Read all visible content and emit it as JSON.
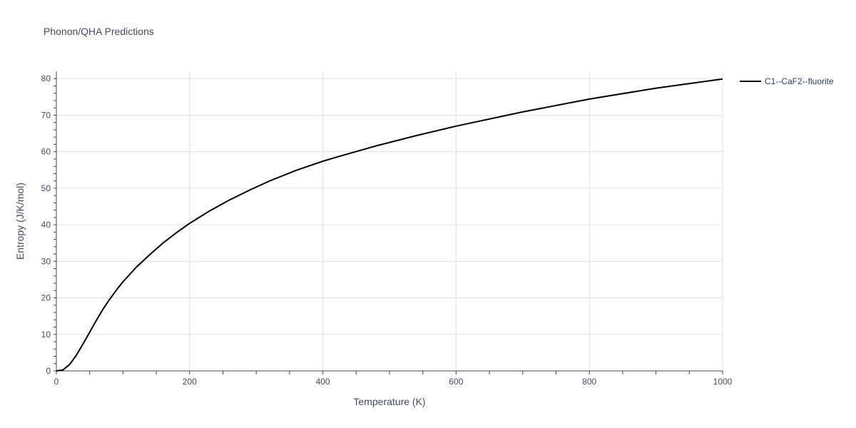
{
  "chart_data": {
    "type": "line",
    "title": "Phonon/QHA Predictions",
    "xlabel": "Temperature (K)",
    "ylabel": "Entropy (J/K/mol)",
    "xlim": [
      0,
      1000
    ],
    "ylim": [
      0,
      82
    ],
    "x_ticks": [
      0,
      200,
      400,
      600,
      800,
      1000
    ],
    "y_ticks": [
      0,
      10,
      20,
      30,
      40,
      50,
      60,
      70,
      80
    ],
    "grid": true,
    "legend_position": "top-right",
    "series": [
      {
        "name": "C1--CaF2--fluorite",
        "color": "#000000",
        "x": [
          0,
          10,
          20,
          30,
          40,
          50,
          60,
          70,
          80,
          90,
          100,
          120,
          140,
          160,
          180,
          200,
          230,
          260,
          290,
          320,
          360,
          400,
          420,
          480,
          540,
          600,
          700,
          800,
          900,
          1000
        ],
        "y": [
          0,
          0.3,
          1.8,
          4.3,
          7.4,
          10.6,
          13.8,
          16.9,
          19.6,
          22.1,
          24.4,
          28.4,
          31.8,
          35.0,
          37.8,
          40.4,
          43.8,
          46.8,
          49.5,
          52.0,
          54.9,
          57.4,
          58.5,
          61.6,
          64.4,
          67.0,
          70.9,
          74.4,
          77.4,
          79.9
        ]
      }
    ]
  }
}
